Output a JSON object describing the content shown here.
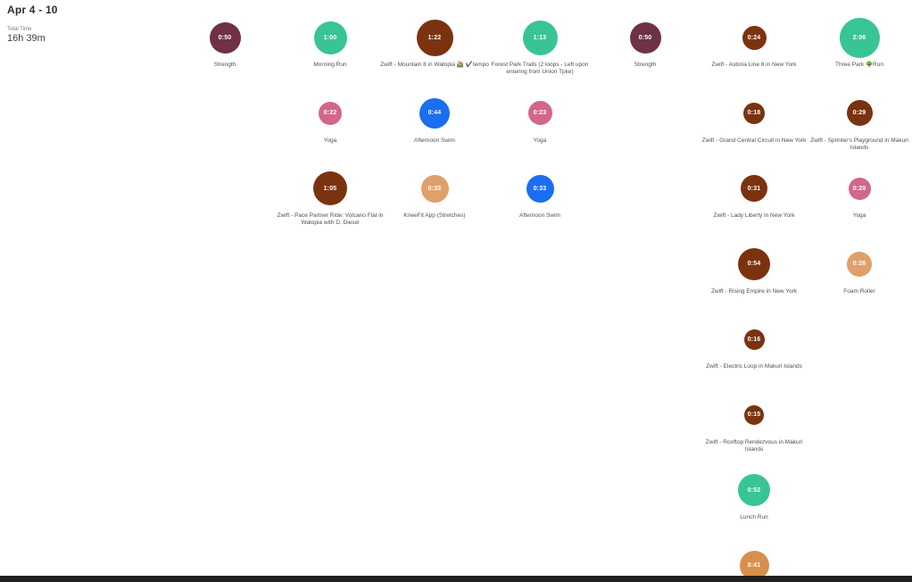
{
  "header": {
    "week_label": "Apr 4 - 10",
    "total_time_label": "Total Time",
    "total_time_value": "16h 39m"
  },
  "colors": {
    "strength": "#6E3145",
    "run": "#38C593",
    "ride": "#7B330F",
    "yoga": "#D2668B",
    "swim": "#1A6EF0",
    "stretch": "#DFA06A",
    "workout": "#D98F4C",
    "bottom_bar": "#1F1F1F"
  },
  "activities": [
    {
      "title": "Strength",
      "duration": "0:50",
      "minutes": 50,
      "type": "strength",
      "day": 0,
      "slot": 0
    },
    {
      "title": "Morning Run",
      "duration": "1:00",
      "minutes": 60,
      "type": "run",
      "day": 1,
      "slot": 0
    },
    {
      "title": "Yoga",
      "duration": "0:22",
      "minutes": 22,
      "type": "yoga",
      "day": 1,
      "slot": 1
    },
    {
      "title": "Zwift - Pace Partner Ride: Volcano Flat in Watopia with D. Diesel",
      "duration": "1:05",
      "minutes": 65,
      "type": "ride",
      "day": 1,
      "slot": 2
    },
    {
      "title": "Zwift - Mountain 8 in Watopia 🚵 ✔️tempo",
      "duration": "1:22",
      "minutes": 82,
      "type": "ride",
      "day": 2,
      "slot": 0
    },
    {
      "title": "Afternoon Swim",
      "duration": "0:44",
      "minutes": 44,
      "type": "swim",
      "day": 2,
      "slot": 1
    },
    {
      "title": "KneeFit App (Stretches)",
      "duration": "0:33",
      "minutes": 33,
      "type": "stretch",
      "day": 2,
      "slot": 2
    },
    {
      "title": "Forest Park Trails (2 loops - Left upon entering from Union Tpke)",
      "duration": "1:13",
      "minutes": 73,
      "type": "run",
      "day": 3,
      "slot": 0
    },
    {
      "title": "Yoga",
      "duration": "0:23",
      "minutes": 23,
      "type": "yoga",
      "day": 3,
      "slot": 1
    },
    {
      "title": "Afternoon Swim",
      "duration": "0:33",
      "minutes": 33,
      "type": "swim",
      "day": 3,
      "slot": 2
    },
    {
      "title": "Strength",
      "duration": "0:50",
      "minutes": 50,
      "type": "strength",
      "day": 4,
      "slot": 0
    },
    {
      "title": "Zwift - Astoria Line 8 in New York",
      "duration": "0:24",
      "minutes": 24,
      "type": "ride",
      "day": 5,
      "slot": 0
    },
    {
      "title": "Zwift - Grand Central Circuit in New York",
      "duration": "0:18",
      "minutes": 18,
      "type": "ride",
      "day": 5,
      "slot": 1
    },
    {
      "title": "Zwift - Lady Liberty in New York",
      "duration": "0:31",
      "minutes": 31,
      "type": "ride",
      "day": 5,
      "slot": 2
    },
    {
      "title": "Zwift - Rising Empire in New York",
      "duration": "0:54",
      "minutes": 54,
      "type": "ride",
      "day": 5,
      "slot": 3
    },
    {
      "title": "Zwift - Electric Loop in Makuri Islands",
      "duration": "0:16",
      "minutes": 16,
      "type": "ride",
      "day": 5,
      "slot": 4
    },
    {
      "title": "Zwift - Rooftop Rendezvous in Makuri Islands",
      "duration": "0:15",
      "minutes": 15,
      "type": "ride",
      "day": 5,
      "slot": 5
    },
    {
      "title": "Lunch Run",
      "duration": "0:52",
      "minutes": 52,
      "type": "run",
      "day": 5,
      "slot": 6
    },
    {
      "title": "",
      "duration": "0:41",
      "minutes": 41,
      "type": "workout",
      "day": 5,
      "slot": 7
    },
    {
      "title": "Three Park 🌳Run",
      "duration": "2:06",
      "minutes": 126,
      "type": "run",
      "day": 6,
      "slot": 0
    },
    {
      "title": "Zwift - Sprinter's Playground in Makuri Islands",
      "duration": "0:29",
      "minutes": 29,
      "type": "ride",
      "day": 6,
      "slot": 1
    },
    {
      "title": "Yoga",
      "duration": "0:20",
      "minutes": 20,
      "type": "yoga",
      "day": 6,
      "slot": 2
    },
    {
      "title": "Foam Roller",
      "duration": "0:26",
      "minutes": 26,
      "type": "stretch",
      "day": 6,
      "slot": 3
    }
  ]
}
